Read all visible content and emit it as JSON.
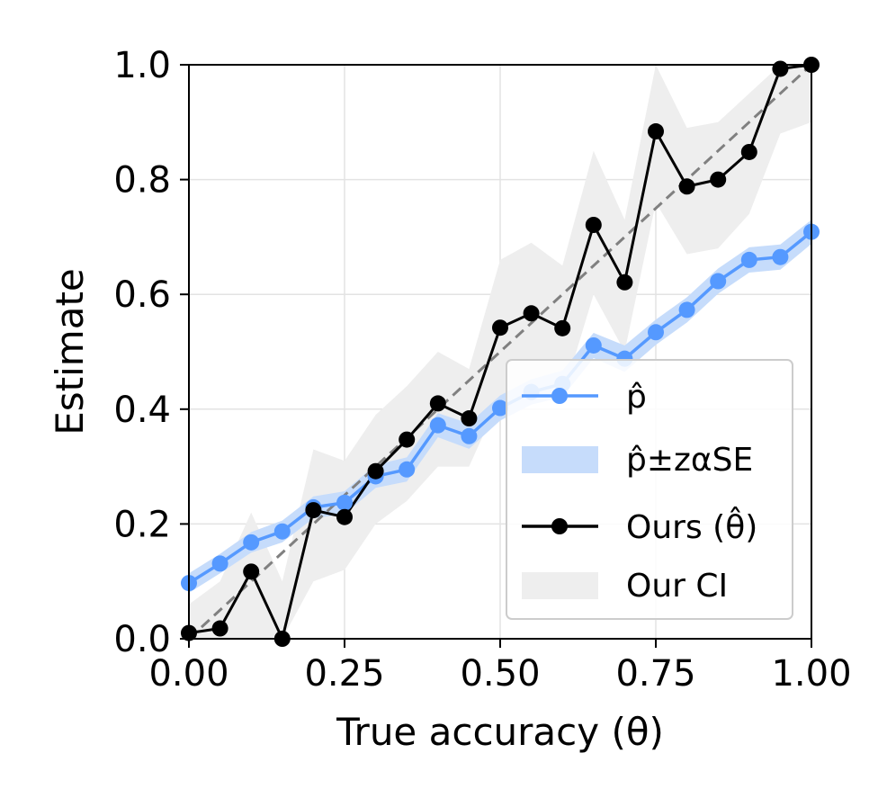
{
  "chart_data": {
    "type": "line",
    "xlabel": "True accuracy (θ)",
    "ylabel": "Estimate",
    "xlim": [
      0.0,
      1.0
    ],
    "ylim": [
      0.0,
      1.0
    ],
    "xticks": [
      "0.00",
      "0.25",
      "0.50",
      "0.75",
      "1.00"
    ],
    "yticks": [
      "0.0",
      "0.2",
      "0.4",
      "0.6",
      "0.8",
      "1.0"
    ],
    "grid": true,
    "legend_position": "lower-right",
    "reference_line": {
      "style": "dashed",
      "color": "#808080",
      "from": [
        0,
        0
      ],
      "to": [
        1,
        1
      ]
    },
    "x": [
      0.0,
      0.05,
      0.1,
      0.15,
      0.2,
      0.25,
      0.3,
      0.35,
      0.4,
      0.45,
      0.5,
      0.55,
      0.6,
      0.65,
      0.7,
      0.75,
      0.8,
      0.85,
      0.9,
      0.95,
      1.0
    ],
    "series": [
      {
        "name": "p̂",
        "color": "#5599ff",
        "values": [
          0.097,
          0.131,
          0.168,
          0.187,
          0.229,
          0.237,
          0.283,
          0.295,
          0.372,
          0.353,
          0.402,
          0.43,
          0.444,
          0.511,
          0.488,
          0.534,
          0.573,
          0.623,
          0.66,
          0.665,
          0.709
        ]
      },
      {
        "name": "p̂±zαSE",
        "type": "band",
        "color": "#c6dcfb",
        "lower": [
          0.08,
          0.114,
          0.15,
          0.168,
          0.21,
          0.217,
          0.263,
          0.274,
          0.351,
          0.331,
          0.38,
          0.408,
          0.421,
          0.489,
          0.465,
          0.512,
          0.551,
          0.601,
          0.638,
          0.643,
          0.688
        ],
        "upper": [
          0.114,
          0.148,
          0.186,
          0.206,
          0.248,
          0.257,
          0.303,
          0.316,
          0.393,
          0.375,
          0.424,
          0.452,
          0.467,
          0.533,
          0.511,
          0.556,
          0.595,
          0.645,
          0.682,
          0.687,
          0.73
        ]
      },
      {
        "name": "Ours (θ̂)",
        "color": "#000000",
        "values": [
          0.01,
          0.018,
          0.117,
          0.0,
          0.224,
          0.212,
          0.292,
          0.347,
          0.41,
          0.384,
          0.542,
          0.567,
          0.541,
          0.721,
          0.621,
          0.884,
          0.788,
          0.8,
          0.848,
          0.993,
          1.0
        ]
      },
      {
        "name": "Our CI",
        "type": "band",
        "color": "#eeeeee",
        "lower": [
          0.0,
          0.0,
          0.0,
          0.0,
          0.1,
          0.12,
          0.2,
          0.24,
          0.3,
          0.3,
          0.42,
          0.44,
          0.42,
          0.6,
          0.5,
          0.76,
          0.67,
          0.68,
          0.74,
          0.88,
          0.9
        ],
        "upper": [
          0.06,
          0.1,
          0.22,
          0.1,
          0.33,
          0.31,
          0.39,
          0.44,
          0.5,
          0.47,
          0.66,
          0.69,
          0.65,
          0.85,
          0.73,
          1.0,
          0.89,
          0.9,
          0.95,
          1.0,
          1.0
        ]
      }
    ]
  },
  "legend": {
    "items": [
      {
        "label": "p̂",
        "kind": "line-marker",
        "color": "#5599ff"
      },
      {
        "label": "p̂±zαSE",
        "kind": "patch",
        "color": "#c6dcfb"
      },
      {
        "label": "Ours (θ̂)",
        "kind": "line-marker",
        "color": "#000000"
      },
      {
        "label": "Our CI",
        "kind": "patch",
        "color": "#eeeeee"
      }
    ]
  }
}
